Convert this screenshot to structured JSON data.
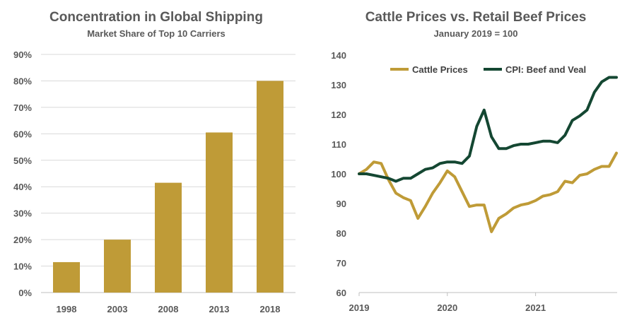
{
  "chart_data": [
    {
      "type": "bar",
      "title": "Concentration  in Global Shipping",
      "subtitle": "Market Share of Top 10 Carriers",
      "categories": [
        "1998",
        "2003",
        "2008",
        "2013",
        "2018"
      ],
      "values": [
        11.5,
        20,
        41.5,
        60.5,
        80
      ],
      "ylim": [
        0,
        90
      ],
      "yticks": [
        "0%",
        "10%",
        "20%",
        "30%",
        "40%",
        "50%",
        "60%",
        "70%",
        "80%",
        "90%"
      ],
      "grid": true,
      "color": "#bf9b37"
    },
    {
      "type": "line",
      "title": "Cattle Prices vs. Retail Beef Prices",
      "subtitle": "January 2019 = 100",
      "ylim": [
        60,
        140
      ],
      "yticks": [
        "60",
        "70",
        "80",
        "90",
        "100",
        "110",
        "120",
        "130",
        "140"
      ],
      "xticks": [
        "2019",
        "2020",
        "2021"
      ],
      "x_start": "2019-01",
      "x_end": "2021-12",
      "legend_position": "top",
      "series": [
        {
          "name": "Cattle Prices",
          "color": "#bf9b37",
          "values": [
            100,
            101.5,
            104,
            103.5,
            98,
            93.5,
            92,
            91,
            85,
            89,
            93.5,
            97,
            101,
            99,
            94,
            89,
            89.5,
            89.5,
            80.5,
            85,
            86.5,
            88.5,
            89.5,
            90,
            91,
            92.5,
            93,
            94,
            97.5,
            97,
            99.5,
            100,
            101.5,
            102.5,
            102.5,
            107
          ]
        },
        {
          "name": "CPI: Beef and Veal",
          "color": "#144732",
          "values": [
            100,
            100,
            99.5,
            99,
            98.5,
            97.5,
            98.5,
            98.5,
            100,
            101.5,
            102,
            103.5,
            104,
            104,
            103.5,
            106,
            116,
            121.5,
            112.5,
            108.5,
            108.5,
            109.5,
            110,
            110,
            110.5,
            111,
            111,
            110.5,
            113,
            118,
            119.5,
            121.5,
            127.5,
            131,
            132.5,
            132.5
          ]
        }
      ]
    }
  ]
}
